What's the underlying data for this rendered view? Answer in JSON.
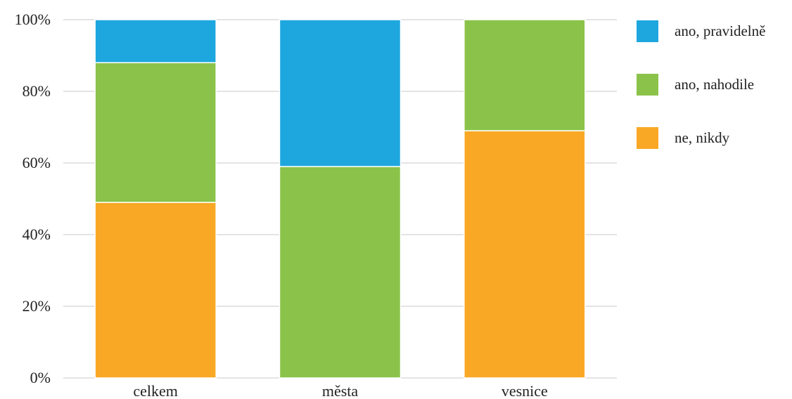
{
  "chart_data": {
    "type": "bar",
    "stacked": true,
    "categories": [
      "celkem",
      "města",
      "vesnice"
    ],
    "series": [
      {
        "name": "ne, nikdy",
        "values": [
          49,
          0,
          69
        ],
        "color": "#f9a825"
      },
      {
        "name": "ano, nahodile",
        "values": [
          39,
          59,
          31
        ],
        "color": "#8bc34a"
      },
      {
        "name": "ano, pravidelně",
        "values": [
          12,
          41,
          0
        ],
        "color": "#1ea7df"
      }
    ],
    "legend_order": [
      "ano, pravidelně",
      "ano, nahodile",
      "ne, nikdy"
    ],
    "ylim": [
      0,
      100
    ],
    "yticks": [
      "0%",
      "20%",
      "40%",
      "60%",
      "80%",
      "100%"
    ],
    "title": "",
    "xlabel": "",
    "ylabel": "",
    "grid": true,
    "legend_position": "right"
  },
  "legend": [
    {
      "label": "ano, pravidelně",
      "color": "#1ea7df"
    },
    {
      "label": "ano, nahodile",
      "color": "#8bc34a"
    },
    {
      "label": "ne, nikdy",
      "color": "#f9a825"
    }
  ]
}
